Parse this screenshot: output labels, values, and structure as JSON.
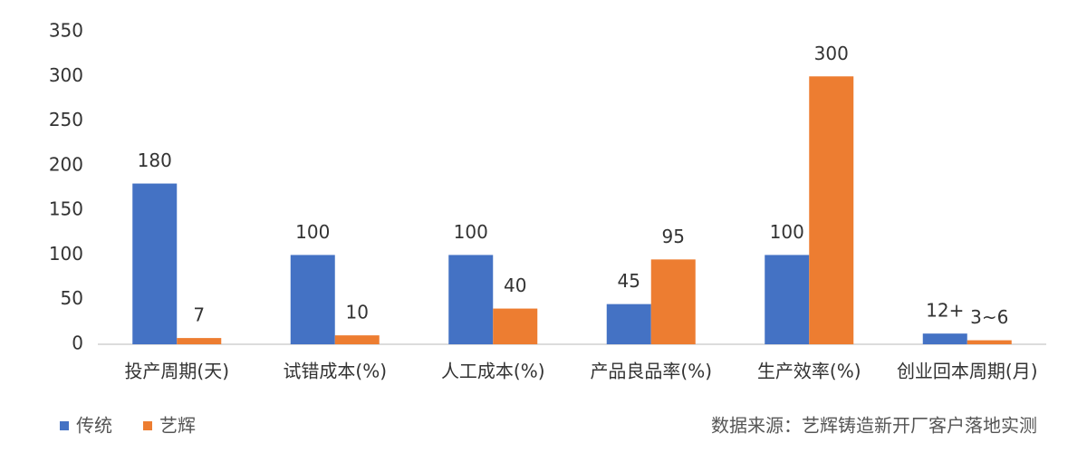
{
  "chart_data": {
    "type": "bar",
    "categories": [
      "投产周期(天)",
      "试错成本(%)",
      "人工成本(%)",
      "产品良品率(%)",
      "生产效率(%)",
      "创业回本周期(月)"
    ],
    "series": [
      {
        "name": "传统",
        "color": "#4472c4",
        "values": [
          180,
          100,
          100,
          45,
          100,
          12
        ],
        "value_labels": [
          "180",
          "100",
          "100",
          "45",
          "100",
          "12+"
        ]
      },
      {
        "name": "艺辉",
        "color": "#ed7d31",
        "values": [
          7,
          10,
          40,
          95,
          300,
          4.5
        ],
        "value_labels": [
          "7",
          "10",
          "40",
          "95",
          "300",
          "3~6"
        ]
      }
    ],
    "ylim": [
      0,
      350
    ],
    "yticks": [
      0,
      50,
      100,
      150,
      200,
      250,
      300,
      350
    ],
    "grid": false,
    "legend": "bottom-left",
    "source": "数据来源：艺辉铸造新开厂客户落地实测"
  }
}
